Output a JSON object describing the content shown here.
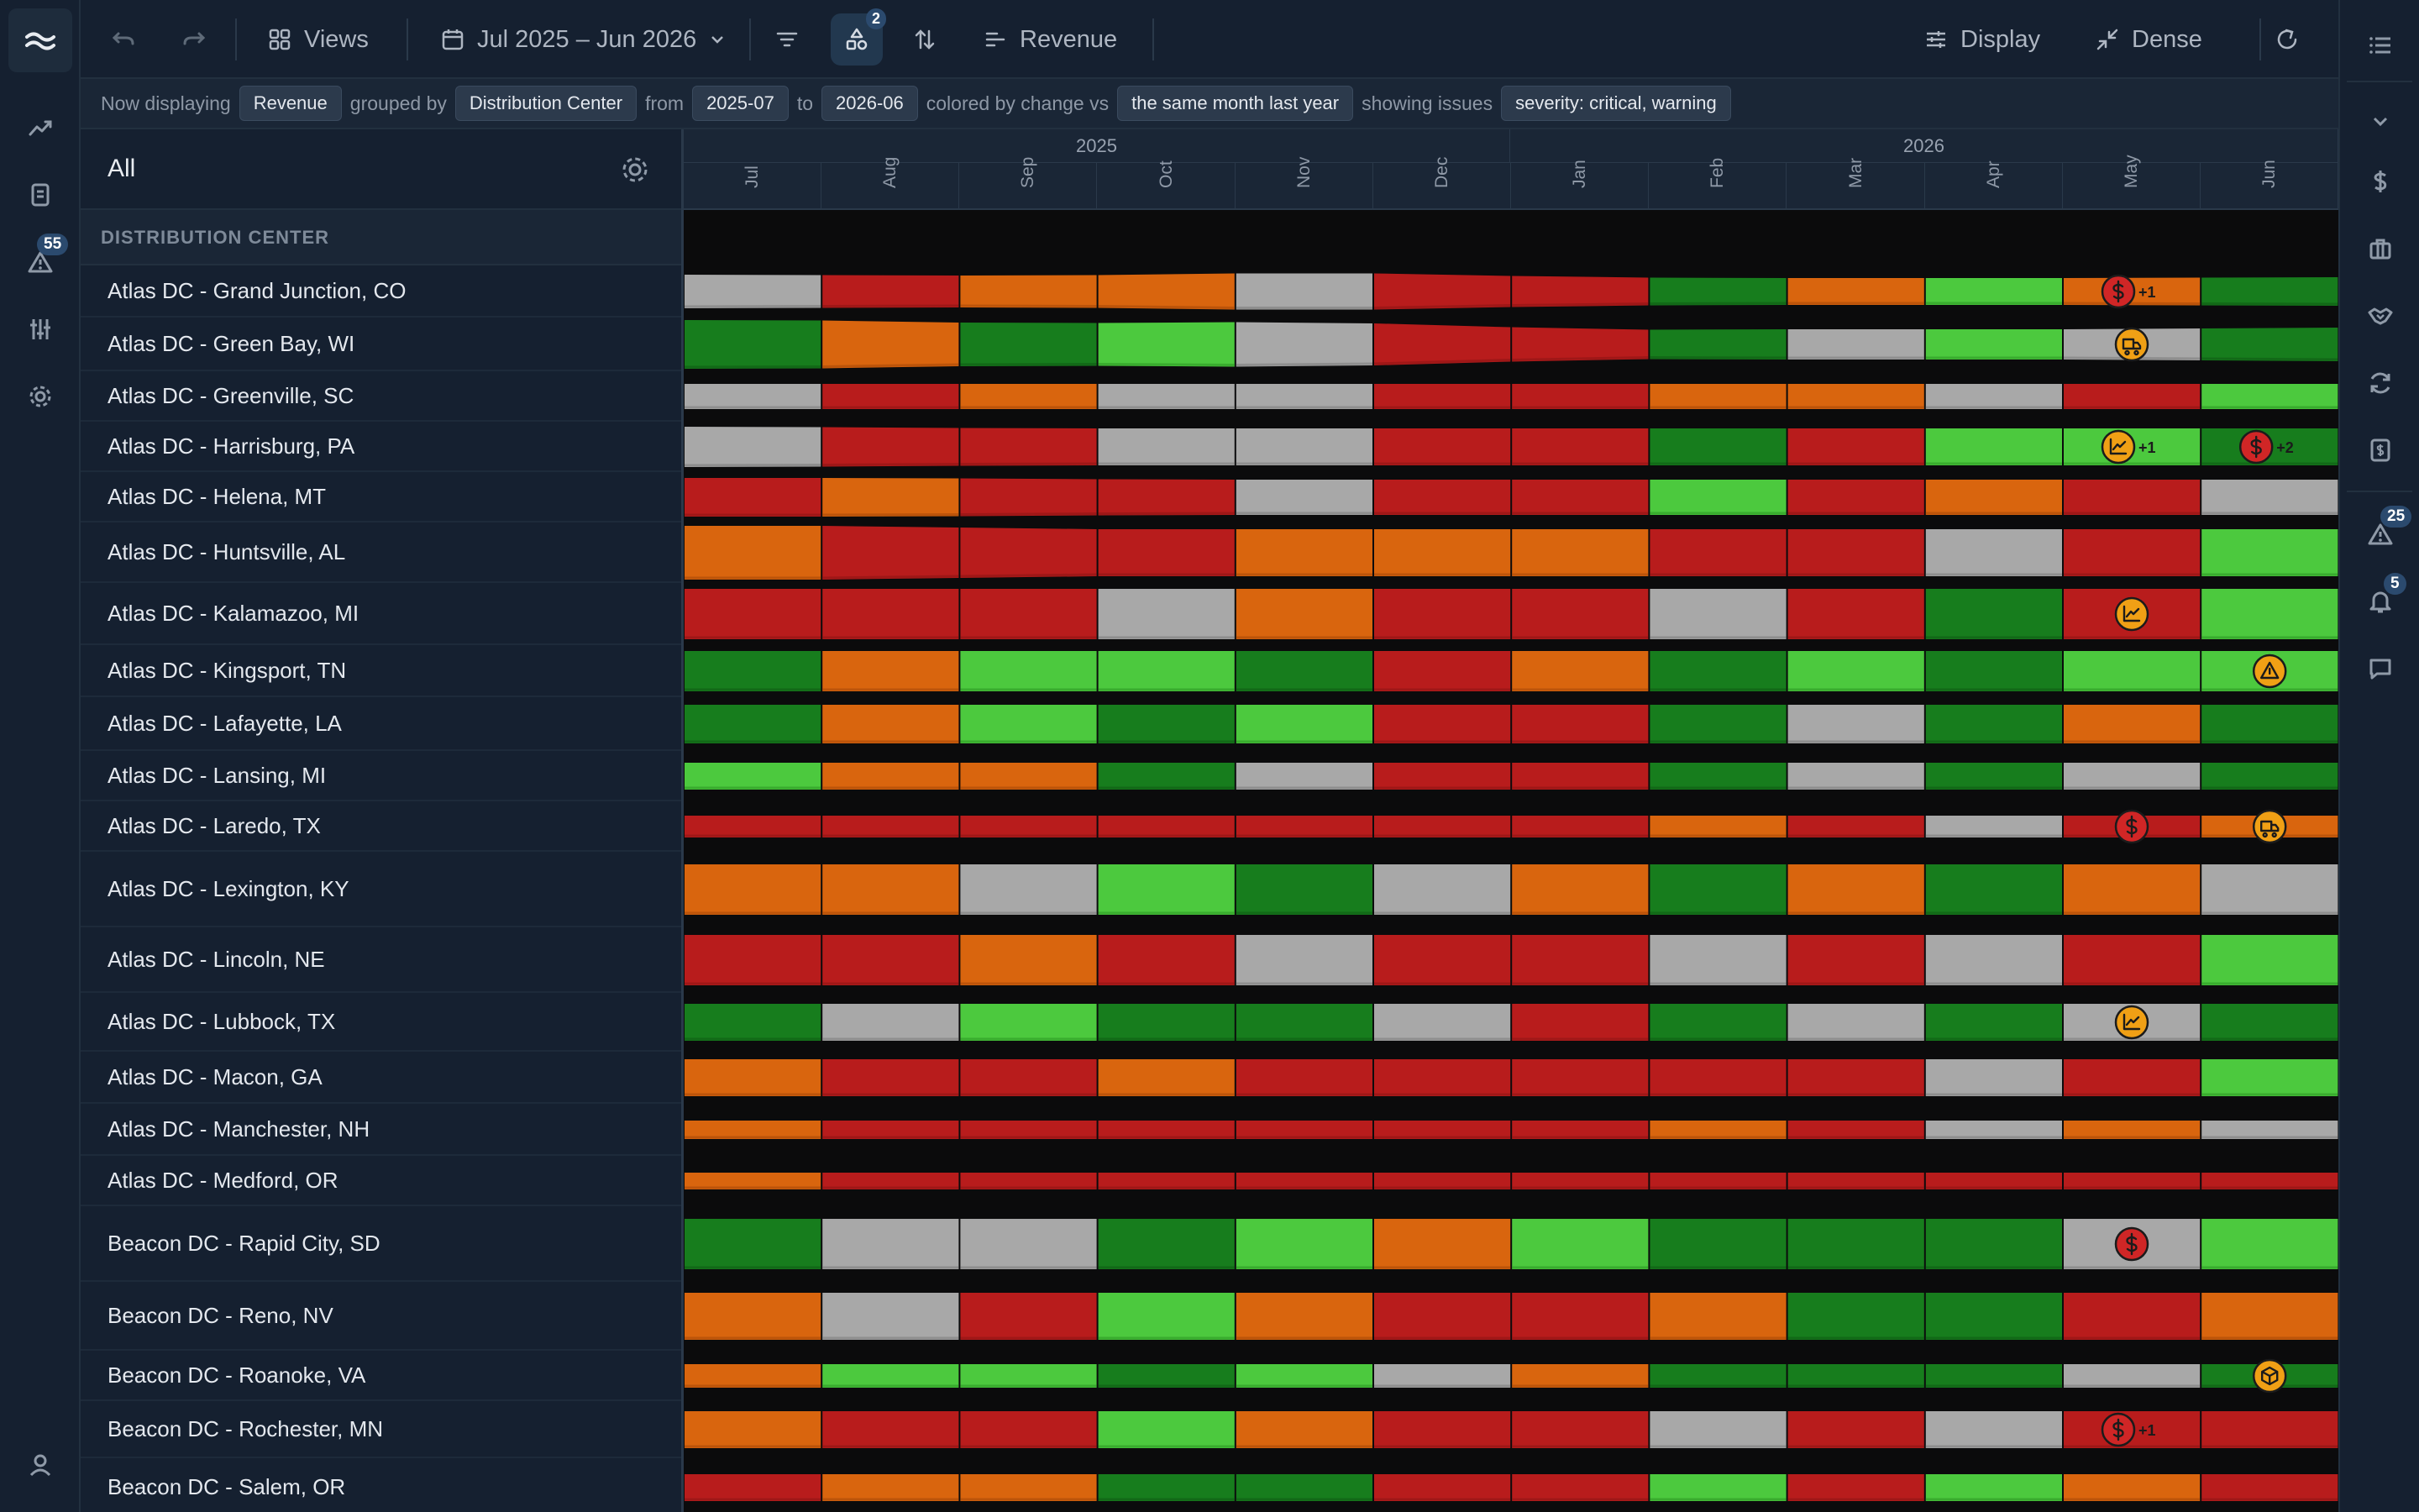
{
  "toolbar": {
    "views_label": "Views",
    "date_range_label": "Jul 2025 – Jun 2026",
    "group_count": "2",
    "metric_label": "Revenue",
    "display_label": "Display",
    "density_label": "Dense"
  },
  "sentence": {
    "t1": "Now displaying",
    "metric": "Revenue",
    "t2": "grouped by",
    "group": "Distribution Center",
    "t3": "from",
    "from": "2025-07",
    "t4": "to",
    "to": "2026-06",
    "t5": "colored by change vs",
    "compare": "the same month last year",
    "t6": "showing issues",
    "issues": "severity: critical, warning"
  },
  "left_rail": {
    "alerts_badge": "55"
  },
  "right_rail": {
    "alerts_badge": "25",
    "notifications_badge": "5"
  },
  "list": {
    "title": "All",
    "group_header": "DISTRIBUTION CENTER"
  },
  "timeline": {
    "years": [
      "2025",
      "2026"
    ],
    "months": [
      "Jul",
      "Aug",
      "Sep",
      "Oct",
      "Nov",
      "Dec",
      "Jan",
      "Feb",
      "Mar",
      "Apr",
      "May",
      "Jun"
    ]
  },
  "colors": {
    "R": "#b81c1c",
    "O": "#d9650e",
    "G": "#4cc93e",
    "D": "#177d1d",
    "S": "#a8a8a8",
    "issue_critical": "#d02626",
    "issue_warning": "#f0a015"
  },
  "rows": [
    {
      "name": "Atlas DC - Grand Junction, CO",
      "colors": "SROOSRRDOGOD",
      "heights": [
        20,
        19,
        19,
        20,
        23,
        20,
        17,
        16,
        16,
        16,
        16,
        17
      ],
      "issues": [
        {
          "month": 10,
          "kind": "dollar",
          "severity": "critical",
          "extra": "+1"
        }
      ]
    },
    {
      "name": "Atlas DC - Green Bay, WI",
      "colors": "DODGSRRDSGSD",
      "heights": [
        29,
        28,
        24,
        27,
        26,
        24,
        17,
        18,
        18,
        18,
        18,
        20
      ],
      "issues": [
        {
          "month": 10,
          "kind": "truck",
          "severity": "warning"
        }
      ]
    },
    {
      "name": "Atlas DC - Greenville, SC",
      "colors": "SROSSRROOSRG",
      "heights": [
        15,
        15,
        15,
        15,
        15,
        15,
        15,
        15,
        15,
        15,
        15,
        15
      ],
      "issues": []
    },
    {
      "name": "Atlas DC - Harrisburg, PA",
      "colors": "SRRSSRRDRGGD",
      "heights": [
        24,
        23,
        22,
        22,
        22,
        22,
        22,
        22,
        22,
        22,
        22,
        22
      ],
      "issues": [
        {
          "month": 10,
          "kind": "chart",
          "severity": "warning",
          "extra": "+1"
        },
        {
          "month": 11,
          "kind": "dollar",
          "severity": "critical",
          "extra": "+2"
        }
      ]
    },
    {
      "name": "Atlas DC - Helena, MT",
      "colors": "RORRSRRGRORS",
      "heights": [
        23,
        23,
        22,
        21,
        21,
        21,
        21,
        21,
        21,
        21,
        21,
        21
      ],
      "issues": []
    },
    {
      "name": "Atlas DC - Huntsville, AL",
      "colors": "ORRROOORRSRG",
      "heights": [
        32,
        32,
        28,
        28,
        28,
        28,
        28,
        28,
        28,
        28,
        28,
        28
      ],
      "issues": []
    },
    {
      "name": "Atlas DC - Kalamazoo, MI",
      "colors": "RRRSORRSRDRG",
      "heights": [
        30,
        30,
        30,
        30,
        30,
        30,
        30,
        30,
        30,
        30,
        30,
        30
      ],
      "issues": [
        {
          "month": 10,
          "kind": "chart",
          "severity": "warning"
        }
      ]
    },
    {
      "name": "Atlas DC - Kingsport, TN",
      "colors": "DOGGDRODGDGG",
      "heights": [
        24,
        24,
        24,
        24,
        24,
        24,
        24,
        24,
        24,
        24,
        24,
        24
      ],
      "issues": [
        {
          "month": 11,
          "kind": "warning",
          "severity": "warning"
        }
      ]
    },
    {
      "name": "Atlas DC - Lafayette, LA",
      "colors": "DOGDGRRDSDOD",
      "heights": [
        23,
        23,
        23,
        23,
        23,
        23,
        23,
        23,
        23,
        23,
        23,
        23
      ],
      "issues": []
    },
    {
      "name": "Atlas DC - Lansing, MI",
      "colors": "GOODSRRDSDSD",
      "heights": [
        16,
        16,
        16,
        16,
        16,
        16,
        16,
        16,
        16,
        16,
        16,
        16
      ],
      "issues": []
    },
    {
      "name": "Atlas DC - Laredo, TX",
      "colors": "RRRRRRRORSRO",
      "heights": [
        13,
        13,
        13,
        13,
        13,
        13,
        13,
        13,
        13,
        13,
        13,
        13
      ],
      "issues": [
        {
          "month": 10,
          "kind": "dollar",
          "severity": "critical"
        },
        {
          "month": 11,
          "kind": "truck",
          "severity": "warning"
        }
      ]
    },
    {
      "name": "Atlas DC - Lexington, KY",
      "colors": "OOSGDSODODOS",
      "heights": [
        30,
        30,
        30,
        30,
        30,
        30,
        30,
        30,
        30,
        30,
        30,
        30
      ],
      "issues": []
    },
    {
      "name": "Atlas DC - Lincoln, NE",
      "colors": "RRORSRRSRSRG",
      "heights": [
        30,
        30,
        30,
        30,
        30,
        30,
        30,
        30,
        30,
        30,
        30,
        30
      ],
      "issues": []
    },
    {
      "name": "Atlas DC - Lubbock, TX",
      "colors": "DSGDDSRDSDSD",
      "heights": [
        22,
        22,
        22,
        22,
        22,
        22,
        22,
        22,
        22,
        22,
        22,
        22
      ],
      "issues": [
        {
          "month": 10,
          "kind": "chart",
          "severity": "warning"
        }
      ]
    },
    {
      "name": "Atlas DC - Macon, GA",
      "colors": "ORRORRRRRSRG",
      "heights": [
        22,
        22,
        22,
        22,
        22,
        22,
        22,
        22,
        22,
        22,
        22,
        22
      ],
      "issues": []
    },
    {
      "name": "Atlas DC - Manchester, NH",
      "colors": "ORRRRRRORSOS",
      "heights": [
        11,
        11,
        11,
        11,
        11,
        11,
        11,
        11,
        11,
        11,
        11,
        11
      ],
      "issues": []
    },
    {
      "name": "Atlas DC - Medford, OR",
      "colors": "ORRRRRRRRRRR",
      "heights": [
        10,
        10,
        10,
        10,
        10,
        10,
        10,
        10,
        10,
        10,
        10,
        10
      ],
      "issues": []
    },
    {
      "name": "Beacon DC - Rapid City, SD",
      "colors": "DSSDGOGDDDSG",
      "heights": [
        30,
        30,
        30,
        30,
        30,
        30,
        30,
        30,
        30,
        30,
        30,
        30
      ],
      "issues": [
        {
          "month": 10,
          "kind": "dollar",
          "severity": "critical"
        }
      ]
    },
    {
      "name": "Beacon DC - Reno, NV",
      "colors": "OSRGORRODDRO",
      "heights": [
        28,
        28,
        28,
        28,
        28,
        28,
        28,
        28,
        28,
        28,
        28,
        28
      ],
      "issues": []
    },
    {
      "name": "Beacon DC - Roanoke, VA",
      "colors": "OGGDGSODDDSD",
      "heights": [
        14,
        14,
        14,
        14,
        14,
        14,
        14,
        14,
        14,
        14,
        14,
        14
      ],
      "issues": [
        {
          "month": 11,
          "kind": "box",
          "severity": "warning"
        }
      ]
    },
    {
      "name": "Beacon DC - Rochester, MN",
      "colors": "ORRGORRSRSRR",
      "heights": [
        22,
        22,
        22,
        22,
        22,
        22,
        22,
        22,
        22,
        22,
        22,
        22
      ],
      "issues": [
        {
          "month": 10,
          "kind": "dollar",
          "severity": "critical",
          "extra": "+1"
        }
      ]
    },
    {
      "name": "Beacon DC - Salem, OR",
      "colors": "ROODDRRGRGOR",
      "heights": [
        16,
        16,
        16,
        16,
        16,
        16,
        16,
        16,
        16,
        16,
        16,
        16
      ],
      "issues": []
    }
  ]
}
